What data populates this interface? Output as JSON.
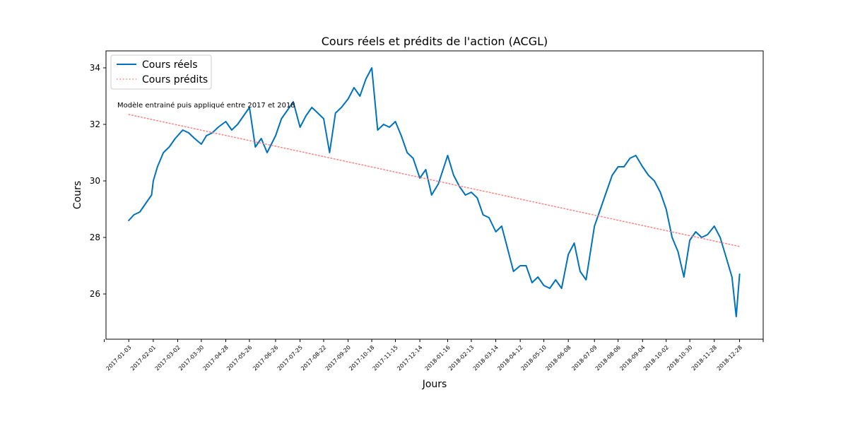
{
  "chart_data": {
    "type": "line",
    "title": "Cours réels et prédits de l'action (ACGL)",
    "xlabel": "Jours",
    "ylabel": "Cours",
    "annotation": "Modèle entrainé puis appliqué entre 2017 et 2018",
    "legend_position": "top-left",
    "grid": false,
    "xlim": [
      "2016-12-07",
      "2019-01-25"
    ],
    "ylim": [
      24.4,
      34.6
    ],
    "yticks": [
      26,
      28,
      30,
      32,
      34
    ],
    "xticks": [
      "2017-01-03",
      "2017-02-01",
      "2017-03-02",
      "2017-03-30",
      "2017-04-28",
      "2017-05-26",
      "2017-06-26",
      "2017-07-25",
      "2017-08-22",
      "2017-09-20",
      "2017-10-18",
      "2017-11-15",
      "2017-12-14",
      "2018-01-16",
      "2018-02-13",
      "2018-03-14",
      "2018-04-12",
      "2018-05-10",
      "2018-06-08",
      "2018-07-09",
      "2018-08-06",
      "2018-09-04",
      "2018-10-02",
      "2018-10-30",
      "2018-11-28",
      "2018-12-28"
    ],
    "series": [
      {
        "name": "Cours réels",
        "color": "#0072bd",
        "style": "solid",
        "x": [
          "2017-01-03",
          "2017-01-09",
          "2017-01-16",
          "2017-01-23",
          "2017-01-30",
          "2017-02-01",
          "2017-02-06",
          "2017-02-13",
          "2017-02-20",
          "2017-02-27",
          "2017-03-02",
          "2017-03-08",
          "2017-03-15",
          "2017-03-22",
          "2017-03-30",
          "2017-04-05",
          "2017-04-12",
          "2017-04-19",
          "2017-04-28",
          "2017-05-05",
          "2017-05-12",
          "2017-05-19",
          "2017-05-26",
          "2017-06-02",
          "2017-06-09",
          "2017-06-16",
          "2017-06-26",
          "2017-07-03",
          "2017-07-10",
          "2017-07-17",
          "2017-07-25",
          "2017-08-01",
          "2017-08-08",
          "2017-08-15",
          "2017-08-22",
          "2017-08-29",
          "2017-09-05",
          "2017-09-12",
          "2017-09-20",
          "2017-09-27",
          "2017-10-04",
          "2017-10-11",
          "2017-10-18",
          "2017-10-25",
          "2017-11-01",
          "2017-11-08",
          "2017-11-15",
          "2017-11-22",
          "2017-11-29",
          "2017-12-06",
          "2017-12-14",
          "2017-12-21",
          "2017-12-28",
          "2018-01-05",
          "2018-01-16",
          "2018-01-23",
          "2018-01-30",
          "2018-02-06",
          "2018-02-13",
          "2018-02-20",
          "2018-02-27",
          "2018-03-06",
          "2018-03-14",
          "2018-03-21",
          "2018-03-28",
          "2018-04-04",
          "2018-04-12",
          "2018-04-19",
          "2018-04-26",
          "2018-05-03",
          "2018-05-10",
          "2018-05-17",
          "2018-05-24",
          "2018-05-31",
          "2018-06-08",
          "2018-06-15",
          "2018-06-22",
          "2018-06-29",
          "2018-07-09",
          "2018-07-16",
          "2018-07-23",
          "2018-07-30",
          "2018-08-06",
          "2018-08-13",
          "2018-08-20",
          "2018-08-27",
          "2018-09-04",
          "2018-09-11",
          "2018-09-18",
          "2018-09-25",
          "2018-10-02",
          "2018-10-09",
          "2018-10-16",
          "2018-10-23",
          "2018-10-30",
          "2018-11-06",
          "2018-11-13",
          "2018-11-20",
          "2018-11-28",
          "2018-12-05",
          "2018-12-12",
          "2018-12-19",
          "2018-12-24",
          "2018-12-28"
        ],
        "values": [
          28.6,
          28.8,
          28.9,
          29.2,
          29.5,
          30.0,
          30.5,
          31.0,
          31.2,
          31.5,
          31.6,
          31.8,
          31.7,
          31.5,
          31.3,
          31.6,
          31.7,
          31.9,
          32.1,
          31.8,
          32.0,
          32.3,
          32.6,
          31.2,
          31.5,
          31.0,
          31.6,
          32.2,
          32.5,
          32.8,
          31.9,
          32.3,
          32.6,
          32.4,
          32.2,
          31.0,
          32.4,
          32.6,
          32.9,
          33.3,
          33.0,
          33.6,
          34.0,
          31.8,
          32.0,
          31.9,
          32.1,
          31.6,
          31.0,
          30.8,
          30.1,
          30.4,
          29.5,
          29.9,
          30.9,
          30.2,
          29.8,
          29.5,
          29.6,
          29.4,
          28.8,
          28.7,
          28.2,
          28.4,
          27.6,
          26.8,
          27.0,
          27.0,
          26.4,
          26.6,
          26.3,
          26.2,
          26.5,
          26.2,
          27.4,
          27.8,
          26.8,
          26.5,
          28.4,
          29.0,
          29.6,
          30.2,
          30.5,
          30.5,
          30.8,
          30.9,
          30.5,
          30.2,
          30.0,
          29.6,
          29.0,
          28.0,
          27.5,
          26.6,
          27.9,
          28.2,
          28.0,
          28.1,
          28.4,
          28.0,
          27.3,
          26.6,
          25.2,
          26.7
        ]
      },
      {
        "name": "Cours prédits",
        "color": "#ff7f7f",
        "style": "dotted",
        "x": [
          "2017-01-03",
          "2018-12-28"
        ],
        "values": [
          32.35,
          27.68
        ]
      }
    ]
  }
}
